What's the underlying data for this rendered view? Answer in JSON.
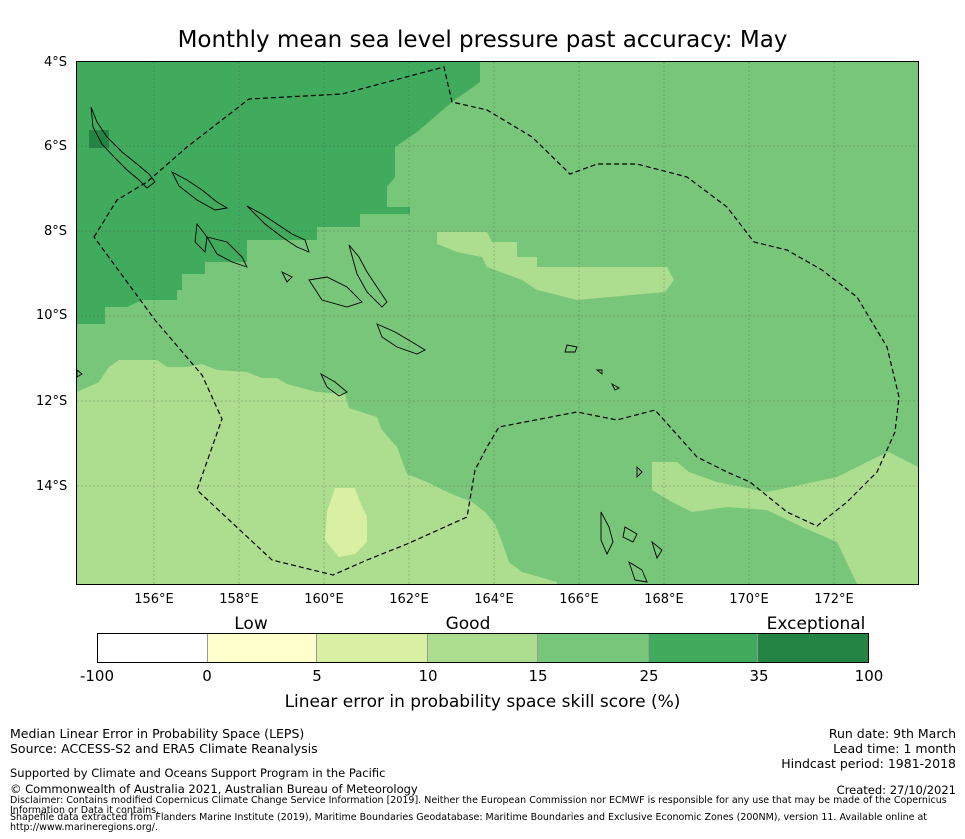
{
  "title": "Monthly mean sea level pressure past accuracy: May",
  "map": {
    "lat_labels": [
      "4°S",
      "6°S",
      "8°S",
      "10°S",
      "12°S",
      "14°S"
    ],
    "lon_labels": [
      "156°E",
      "158°E",
      "160°E",
      "162°E",
      "164°E",
      "166°E",
      "168°E",
      "170°E",
      "172°E"
    ],
    "extent": {
      "lon": [
        154.2,
        174.0
      ],
      "lat": [
        -16.3,
        -4.0
      ]
    }
  },
  "legend": {
    "categories": [
      "Low",
      "Good",
      "Exceptional"
    ],
    "ticks": [
      "-100",
      "0",
      "5",
      "10",
      "15",
      "25",
      "35",
      "100"
    ],
    "colors": [
      "#ffffff",
      "#ffffcc",
      "#d9f0a3",
      "#addd8e",
      "#78c679",
      "#41ab5d",
      "#238443"
    ],
    "label": "Linear error in probability space skill score (%)"
  },
  "info_left": {
    "line1": "Median Linear Error in Probability Space (LEPS)",
    "line2": "Source: ACCESS-S2 and ERA5 Climate Reanalysis",
    "line3": "Supported by Climate and Oceans Support Program in the Pacific",
    "line4": "© Commonwealth of Australia 2021, Australian Bureau of Meteorology"
  },
  "info_right": {
    "run_date": "Run date: 9th March",
    "lead_time": "Lead time: 1 month",
    "hindcast": "Hindcast period: 1981-2018",
    "created": "Created: 27/10/2021"
  },
  "disclaimer": "Disclaimer: Contains modified Copernicus Climate Change Service Information [2019]. Neither the European Commission nor ECMWF is responsible for any use that may be made of the Copernicus Information or Data it contains.",
  "shapefile": "Shapefile data extracted from Flanders Marine Institute (2019), Maritime Boundaries Geodatabase: Maritime Boundaries and Exclusive Economic Zones (200NM), version 11. Available online at http://www.marineregions.org/."
}
